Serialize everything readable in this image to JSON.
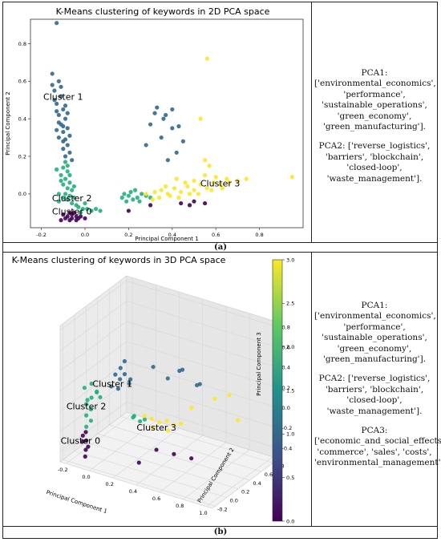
{
  "panel_a": {
    "label": "(a)",
    "description": [
      "PCA1: ['environmental_economics', 'performance', 'sustainable_operations', 'green_economy', 'green_manufacturing'].",
      "PCA2: ['reverse_logistics', 'barriers', 'blockchain', 'closed-loop', 'waste_management']."
    ]
  },
  "panel_b": {
    "label": "(b)",
    "description": [
      "PCA1: ['environmental_economics', 'performance', 'sustainable_operations', 'green_economy', 'green_manufacturing'].",
      "PCA2: ['reverse_logistics', 'barriers', 'blockchain', 'closed-loop', 'waste_management'].",
      "PCA3: ['economic_and_social_effects', 'commerce', 'sales', 'costs', 'environmental_management']."
    ]
  },
  "colors": {
    "cluster_0": "#440154",
    "cluster_1": "#31688e",
    "cluster_2": "#21b07a",
    "cluster_3": "#fde725"
  },
  "chart_data": [
    {
      "type": "scatter",
      "title": "K-Means clustering of keywords in 2D PCA space",
      "xlabel": "Principal Component 1",
      "ylabel": "Principal Component 2",
      "xlim": [
        -0.25,
        1.0
      ],
      "ylim": [
        -0.18,
        0.93
      ],
      "x_ticks": [
        -0.2,
        0.0,
        0.2,
        0.4,
        0.6,
        0.8
      ],
      "y_ticks": [
        0.0,
        0.2,
        0.4,
        0.6,
        0.8
      ],
      "cluster_labels": [
        {
          "text": "Cluster 1",
          "x": -0.1,
          "y": 0.5
        },
        {
          "text": "Cluster 2",
          "x": -0.06,
          "y": -0.04
        },
        {
          "text": "Cluster 0",
          "x": -0.06,
          "y": -0.11
        },
        {
          "text": "Cluster 3",
          "x": 0.62,
          "y": 0.04
        }
      ],
      "series": [
        {
          "cluster": 0,
          "points": [
            [
              -0.08,
              -0.12
            ],
            [
              -0.06,
              -0.13
            ],
            [
              -0.04,
              -0.12
            ],
            [
              -0.07,
              -0.14
            ],
            [
              -0.03,
              -0.13
            ],
            [
              -0.1,
              -0.11
            ],
            [
              -0.05,
              -0.1
            ],
            [
              -0.02,
              -0.12
            ],
            [
              -0.09,
              -0.13
            ],
            [
              -0.06,
              -0.11
            ],
            [
              0.0,
              -0.13
            ],
            [
              -0.11,
              -0.14
            ],
            [
              0.5,
              -0.04
            ],
            [
              0.55,
              -0.05
            ],
            [
              0.48,
              -0.06
            ],
            [
              0.2,
              -0.09
            ],
            [
              0.3,
              -0.06
            ],
            [
              0.44,
              -0.05
            ],
            [
              -0.04,
              -0.14
            ],
            [
              -0.07,
              -0.1
            ]
          ]
        },
        {
          "cluster": 1,
          "points": [
            [
              -0.13,
              0.91
            ],
            [
              -0.15,
              0.64
            ],
            [
              -0.12,
              0.6
            ],
            [
              -0.14,
              0.55
            ],
            [
              -0.11,
              0.52
            ],
            [
              -0.13,
              0.48
            ],
            [
              -0.1,
              0.45
            ],
            [
              -0.12,
              0.42
            ],
            [
              -0.09,
              0.4
            ],
            [
              -0.11,
              0.37
            ],
            [
              -0.08,
              0.35
            ],
            [
              -0.1,
              0.33
            ],
            [
              -0.07,
              0.31
            ],
            [
              -0.09,
              0.29
            ],
            [
              -0.12,
              0.3
            ],
            [
              -0.08,
              0.26
            ],
            [
              -0.1,
              0.24
            ],
            [
              -0.07,
              0.22
            ],
            [
              -0.09,
              0.2
            ],
            [
              -0.06,
              0.18
            ],
            [
              -0.11,
              0.57
            ],
            [
              -0.14,
              0.5
            ],
            [
              -0.13,
              0.44
            ],
            [
              -0.12,
              0.38
            ],
            [
              -0.1,
              0.36
            ],
            [
              -0.13,
              0.34
            ],
            [
              -0.08,
              0.43
            ],
            [
              -0.09,
              0.47
            ],
            [
              -0.15,
              0.58
            ],
            [
              -0.1,
              0.28
            ],
            [
              0.33,
              0.46
            ],
            [
              0.36,
              0.4
            ],
            [
              0.3,
              0.37
            ],
            [
              0.4,
              0.35
            ],
            [
              0.35,
              0.3
            ],
            [
              0.28,
              0.26
            ],
            [
              0.42,
              0.22
            ],
            [
              0.38,
              0.18
            ],
            [
              0.45,
              0.28
            ],
            [
              0.32,
              0.43
            ],
            [
              0.4,
              0.45
            ],
            [
              0.43,
              0.36
            ],
            [
              0.37,
              0.42
            ]
          ]
        },
        {
          "cluster": 2,
          "points": [
            [
              -0.09,
              0.17
            ],
            [
              -0.1,
              0.14
            ],
            [
              -0.08,
              0.12
            ],
            [
              -0.11,
              0.1
            ],
            [
              -0.09,
              0.08
            ],
            [
              -0.07,
              0.06
            ],
            [
              -0.1,
              0.05
            ],
            [
              -0.08,
              0.03
            ],
            [
              -0.06,
              0.02
            ],
            [
              -0.09,
              0.0
            ],
            [
              -0.07,
              -0.01
            ],
            [
              -0.05,
              -0.02
            ],
            [
              -0.08,
              -0.03
            ],
            [
              -0.1,
              -0.02
            ],
            [
              -0.06,
              -0.05
            ],
            [
              -0.04,
              -0.06
            ],
            [
              -0.03,
              -0.07
            ],
            [
              -0.01,
              -0.08
            ],
            [
              0.01,
              -0.08
            ],
            [
              0.03,
              -0.09
            ],
            [
              -0.12,
              0.0
            ],
            [
              -0.11,
              0.07
            ],
            [
              -0.07,
              0.1
            ],
            [
              -0.05,
              0.04
            ],
            [
              -0.12,
              -0.04
            ],
            [
              0.0,
              -0.05
            ],
            [
              -0.02,
              -0.1
            ],
            [
              0.05,
              -0.08
            ],
            [
              0.07,
              -0.09
            ],
            [
              0.17,
              -0.02
            ],
            [
              0.2,
              -0.01
            ],
            [
              0.22,
              -0.03
            ],
            [
              0.24,
              -0.02
            ],
            [
              0.26,
              0.0
            ],
            [
              0.19,
              -0.04
            ],
            [
              0.21,
              0.01
            ],
            [
              0.25,
              -0.04
            ],
            [
              0.28,
              -0.01
            ],
            [
              0.3,
              -0.02
            ],
            [
              0.23,
              0.02
            ],
            [
              0.18,
              0.0
            ],
            [
              -0.13,
              0.13
            ],
            [
              -0.08,
              0.15
            ]
          ]
        },
        {
          "cluster": 3,
          "points": [
            [
              0.56,
              0.72
            ],
            [
              0.95,
              0.09
            ],
            [
              0.53,
              0.4
            ],
            [
              0.57,
              0.15
            ],
            [
              0.55,
              0.18
            ],
            [
              0.28,
              0.0
            ],
            [
              0.32,
              0.01
            ],
            [
              0.35,
              0.02
            ],
            [
              0.38,
              0.0
            ],
            [
              0.41,
              0.03
            ],
            [
              0.44,
              0.01
            ],
            [
              0.47,
              0.04
            ],
            [
              0.5,
              0.02
            ],
            [
              0.53,
              0.05
            ],
            [
              0.56,
              0.03
            ],
            [
              0.59,
              0.06
            ],
            [
              0.62,
              0.05
            ],
            [
              0.65,
              0.08
            ],
            [
              0.7,
              0.07
            ],
            [
              0.34,
              -0.02
            ],
            [
              0.39,
              -0.01
            ],
            [
              0.43,
              -0.02
            ],
            [
              0.48,
              0.0
            ],
            [
              0.52,
              0.0
            ],
            [
              0.58,
              0.02
            ],
            [
              0.6,
              0.09
            ],
            [
              0.66,
              0.06
            ],
            [
              0.74,
              0.08
            ],
            [
              0.37,
              0.04
            ],
            [
              0.46,
              0.06
            ],
            [
              0.31,
              -0.03
            ],
            [
              0.5,
              0.07
            ],
            [
              0.63,
              0.03
            ],
            [
              0.42,
              0.08
            ],
            [
              0.55,
              0.1
            ]
          ]
        }
      ]
    },
    {
      "type": "scatter",
      "title": "K-Means clustering of keywords in 3D PCA space",
      "xlabel": "Principal Component 1",
      "ylabel": "Principal Component 2",
      "zlabel": "Principal Component 3",
      "x_ticks": [
        -0.2,
        0.0,
        0.2,
        0.4,
        0.6,
        0.8,
        1.0
      ],
      "y_ticks": [
        -0.2,
        0.0,
        0.2,
        0.4,
        0.6,
        0.8
      ],
      "z_ticks": [
        -0.4,
        -0.2,
        0.0,
        0.2,
        0.4,
        0.6,
        0.8
      ],
      "colorbar": {
        "min": 0.0,
        "max": 3.0,
        "ticks": [
          0.0,
          0.5,
          1.0,
          1.5,
          2.0,
          2.5,
          3.0
        ]
      },
      "cluster_labels": [
        {
          "text": "Cluster 1",
          "x": -0.05,
          "y": 0.25,
          "z": 0.1
        },
        {
          "text": "Cluster 2",
          "x": -0.15,
          "y": 0.0,
          "z": -0.05
        },
        {
          "text": "Cluster 0",
          "x": -0.15,
          "y": -0.1,
          "z": -0.35
        },
        {
          "text": "Cluster 3",
          "x": 0.45,
          "y": 0.0,
          "z": -0.05
        }
      ],
      "series": [
        {
          "cluster": 0,
          "points": [
            [
              -0.1,
              -0.1,
              -0.3
            ],
            [
              -0.12,
              -0.12,
              -0.25
            ],
            [
              -0.08,
              -0.11,
              -0.35
            ],
            [
              -0.11,
              -0.09,
              -0.4
            ],
            [
              -0.09,
              -0.13,
              -0.2
            ],
            [
              -0.13,
              -0.1,
              -0.32
            ],
            [
              -0.1,
              -0.12,
              -0.45
            ],
            [
              0.4,
              0.1,
              -0.3
            ],
            [
              0.5,
              0.2,
              -0.35
            ],
            [
              0.6,
              0.3,
              -0.4
            ],
            [
              0.3,
              0.0,
              -0.42
            ]
          ]
        },
        {
          "cluster": 1,
          "points": [
            [
              -0.05,
              0.3,
              0.2
            ],
            [
              -0.03,
              0.35,
              0.25
            ],
            [
              0.0,
              0.28,
              0.18
            ],
            [
              -0.02,
              0.4,
              0.3
            ],
            [
              0.02,
              0.32,
              0.22
            ],
            [
              -0.06,
              0.25,
              0.1
            ],
            [
              0.04,
              0.38,
              0.15
            ],
            [
              0.3,
              0.5,
              0.2
            ],
            [
              0.35,
              0.6,
              0.25
            ],
            [
              0.4,
              0.55,
              0.3
            ],
            [
              0.45,
              0.7,
              0.1
            ],
            [
              0.5,
              0.65,
              0.15
            ],
            [
              0.2,
              0.45,
              0.3
            ],
            [
              -0.04,
              0.33,
              0.05
            ],
            [
              0.01,
              0.42,
              0.08
            ]
          ]
        },
        {
          "cluster": 2,
          "points": [
            [
              -0.15,
              0.0,
              0.0
            ],
            [
              -0.13,
              0.05,
              0.05
            ],
            [
              -0.12,
              0.02,
              -0.05
            ],
            [
              -0.1,
              0.08,
              0.1
            ],
            [
              -0.14,
              -0.02,
              -0.1
            ],
            [
              -0.16,
              0.04,
              0.02
            ],
            [
              -0.11,
              0.0,
              -0.15
            ],
            [
              -0.09,
              0.06,
              0.12
            ],
            [
              -0.17,
              0.01,
              0.15
            ],
            [
              -0.12,
              0.03,
              0.2
            ],
            [
              0.2,
              0.1,
              -0.05
            ],
            [
              0.25,
              0.12,
              -0.08
            ],
            [
              0.22,
              0.08,
              -0.02
            ],
            [
              0.28,
              0.14,
              -0.06
            ],
            [
              -0.13,
              -0.04,
              -0.2
            ],
            [
              -0.08,
              0.1,
              0.05
            ]
          ]
        },
        {
          "cluster": 3,
          "points": [
            [
              0.3,
              0.1,
              0.0
            ],
            [
              0.35,
              0.12,
              -0.02
            ],
            [
              0.4,
              0.15,
              -0.05
            ],
            [
              0.45,
              0.18,
              -0.03
            ],
            [
              0.5,
              0.2,
              -0.06
            ],
            [
              0.55,
              0.22,
              -0.04
            ],
            [
              0.38,
              0.08,
              -0.08
            ],
            [
              0.48,
              0.14,
              -0.1
            ],
            [
              0.6,
              0.3,
              0.1
            ],
            [
              0.75,
              0.4,
              0.2
            ],
            [
              0.85,
              0.45,
              0.25
            ],
            [
              0.9,
              0.5,
              0.0
            ]
          ]
        }
      ]
    }
  ]
}
